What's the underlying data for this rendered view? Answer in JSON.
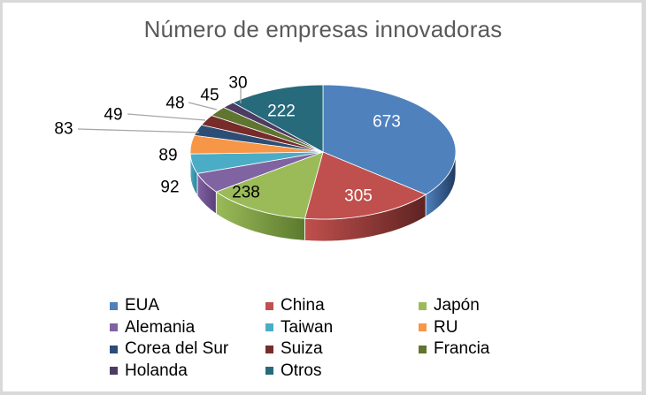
{
  "chart_data": {
    "type": "pie",
    "variant": "3d-pie",
    "title": "Número de empresas innovadoras",
    "categories": [
      "EUA",
      "China",
      "Japón",
      "Alemania",
      "Taiwan",
      "RU",
      "Corea del Sur",
      "Suiza",
      "Francia",
      "Holanda",
      "Otros"
    ],
    "values": [
      673,
      305,
      238,
      92,
      89,
      83,
      49,
      48,
      45,
      30,
      222
    ],
    "colors": [
      "#4f81bd",
      "#c0504d",
      "#9bbb59",
      "#8064a2",
      "#4bacc6",
      "#f79646",
      "#2c4d75",
      "#772c2a",
      "#5f7530",
      "#4d3b62",
      "#276a7c"
    ],
    "side_colors": [
      "#1f3a5e",
      "#5e2322",
      "#5c7a2e",
      "#5a3f7a",
      "#2f7f94",
      "#b3661f",
      "#1a2f48",
      "#4a1a19",
      "#3b4a1d",
      "#2f2340",
      "#163f4a"
    ],
    "data_labels": [
      "673",
      "305",
      "238",
      "92",
      "89",
      "83",
      "49",
      "48",
      "45",
      "30",
      "222"
    ],
    "legend_position": "bottom",
    "start_angle_deg": 0,
    "direction": "clockwise"
  },
  "legend": {
    "items": [
      {
        "label": "EUA",
        "color": "#4f81bd"
      },
      {
        "label": "China",
        "color": "#c0504d"
      },
      {
        "label": "Japón",
        "color": "#9bbb59"
      },
      {
        "label": "Alemania",
        "color": "#8064a2"
      },
      {
        "label": "Taiwan",
        "color": "#4bacc6"
      },
      {
        "label": "RU",
        "color": "#f79646"
      },
      {
        "label": "Corea del Sur",
        "color": "#2c4d75"
      },
      {
        "label": "Suiza",
        "color": "#772c2a"
      },
      {
        "label": "Francia",
        "color": "#5f7530"
      },
      {
        "label": "Holanda",
        "color": "#4d3b62"
      },
      {
        "label": "Otros",
        "color": "#276a7c"
      }
    ]
  }
}
